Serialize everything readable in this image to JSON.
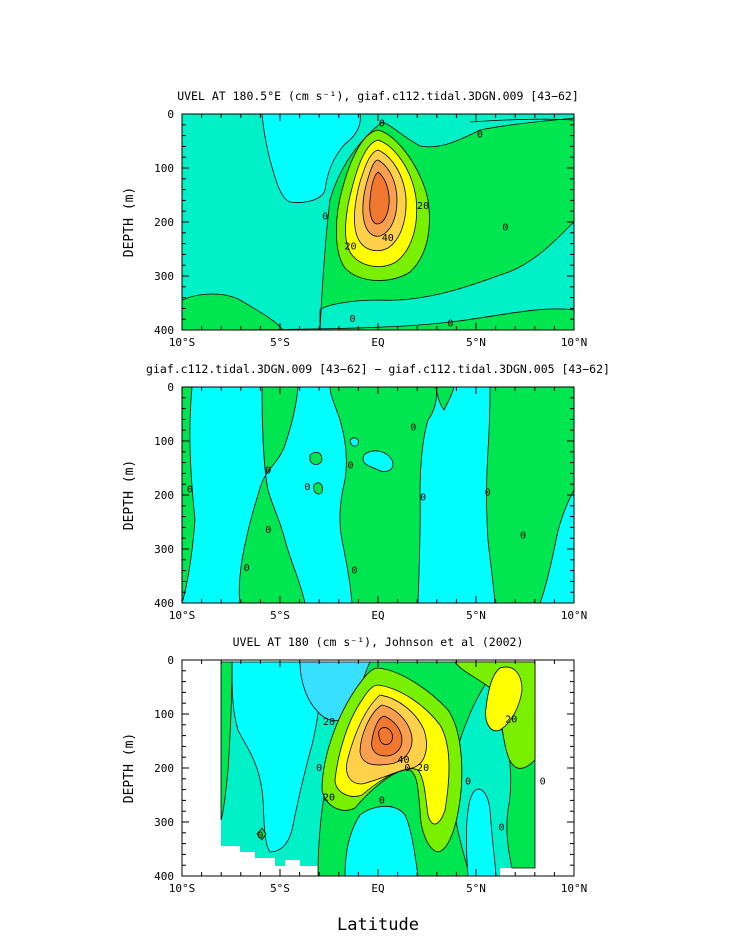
{
  "figure": {
    "xlabel": "Latitude"
  },
  "chart_data": [
    {
      "type": "contour",
      "title": "UVEL AT 180.5°E (cm s⁻¹), giaf.c112.tidal.3DGN.009 [43−62]",
      "ylabel": "DEPTH (m)",
      "xlim": [
        -10,
        10
      ],
      "ylim": [
        400,
        0
      ],
      "x_ticks": [
        "10°S",
        "5°S",
        "EQ",
        "5°N",
        "10°N"
      ],
      "y_ticks": [
        "0",
        "100",
        "200",
        "300",
        "400"
      ],
      "contour_labels": [
        {
          "text": "0",
          "x": 0.2,
          "y": 18
        },
        {
          "text": "0",
          "x": 5.2,
          "y": 38
        },
        {
          "text": "0",
          "x": 6.5,
          "y": 210
        },
        {
          "text": "0",
          "x": -2.7,
          "y": 190
        },
        {
          "text": "0",
          "x": -1.3,
          "y": 380
        },
        {
          "text": "0",
          "x": 3.7,
          "y": 388
        },
        {
          "text": "20",
          "x": 2.3,
          "y": 170
        },
        {
          "text": "20",
          "x": -1.4,
          "y": 245
        },
        {
          "text": "40",
          "x": 0.5,
          "y": 230
        }
      ],
      "jet": {
        "center_x": 0.0,
        "center_depth": 165,
        "max": 70
      }
    },
    {
      "type": "contour",
      "title": "giaf.c112.tidal.3DGN.009 [43−62] − giaf.c112.tidal.3DGN.005 [43−62]",
      "ylabel": "DEPTH (m)",
      "xlim": [
        -10,
        10
      ],
      "ylim": [
        400,
        0
      ],
      "x_ticks": [
        "10°S",
        "5°S",
        "EQ",
        "5°N",
        "10°N"
      ],
      "y_ticks": [
        "0",
        "100",
        "200",
        "300",
        "400"
      ],
      "contour_labels": [
        {
          "text": "0",
          "x": -9.6,
          "y": 190
        },
        {
          "text": "0",
          "x": -5.6,
          "y": 155
        },
        {
          "text": "0",
          "x": -5.6,
          "y": 265
        },
        {
          "text": "0",
          "x": -6.7,
          "y": 335
        },
        {
          "text": "0",
          "x": -3.6,
          "y": 185
        },
        {
          "text": "0",
          "x": -1.4,
          "y": 145
        },
        {
          "text": "0",
          "x": -1.2,
          "y": 340
        },
        {
          "text": "0",
          "x": 1.8,
          "y": 75
        },
        {
          "text": "0",
          "x": 2.3,
          "y": 205
        },
        {
          "text": "0",
          "x": 5.6,
          "y": 195
        },
        {
          "text": "0",
          "x": 7.4,
          "y": 275
        }
      ]
    },
    {
      "type": "contour",
      "title": "UVEL AT 180 (cm s⁻¹), Johnson et al (2002)",
      "ylabel": "DEPTH (m)",
      "xlim": [
        -10,
        10
      ],
      "ylim": [
        400,
        0
      ],
      "x_ticks": [
        "10°S",
        "5°S",
        "EQ",
        "5°N",
        "10°N"
      ],
      "y_ticks": [
        "0",
        "100",
        "200",
        "300",
        "400"
      ],
      "contour_labels": [
        {
          "text": "20",
          "x": -2.5,
          "y": 115
        },
        {
          "text": "20",
          "x": 6.8,
          "y": 110
        },
        {
          "text": "20",
          "x": 2.3,
          "y": 200
        },
        {
          "text": "20",
          "x": -2.5,
          "y": 255
        },
        {
          "text": "40",
          "x": 1.3,
          "y": 185
        },
        {
          "text": "0",
          "x": -3.0,
          "y": 200
        },
        {
          "text": "0",
          "x": -6.0,
          "y": 325
        },
        {
          "text": "0",
          "x": 1.5,
          "y": 200
        },
        {
          "text": "0",
          "x": 4.6,
          "y": 225
        },
        {
          "text": "0",
          "x": 8.4,
          "y": 225
        },
        {
          "text": "0",
          "x": 6.3,
          "y": 310
        },
        {
          "text": "0",
          "x": 0.2,
          "y": 260
        }
      ],
      "jet": {
        "center_x": 0.3,
        "center_depth": 165,
        "max": 60
      }
    }
  ],
  "colors": {
    "cyan": "#00FFFF",
    "aqua_green": "#00F0C8",
    "green": "#00E650",
    "lime": "#78F000",
    "yellow": "#FFFF00",
    "gold": "#FFD04A",
    "orange": "#F8A050",
    "dark_orange": "#F07830",
    "light_blue": "#38E0FF"
  }
}
